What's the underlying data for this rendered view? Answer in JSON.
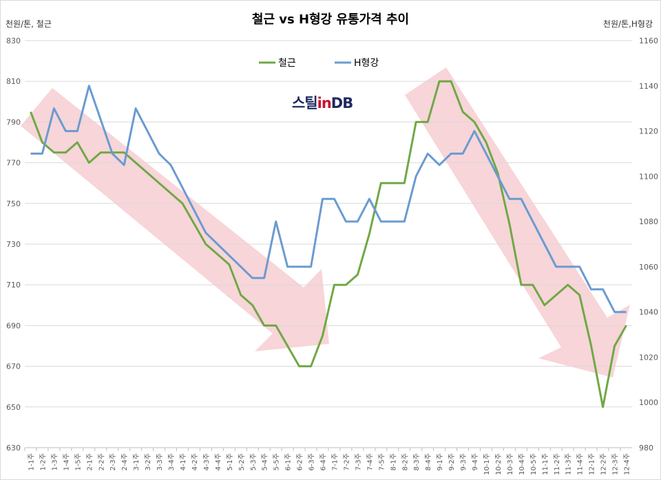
{
  "chart_data": {
    "type": "line",
    "title": "철근 vs H형강 유통가격 추이",
    "ylabel_left": "천원/톤, 철근",
    "ylabel_right": "천원/톤,H형강",
    "ylim_left": [
      630,
      830
    ],
    "ylim_right": [
      980,
      1160
    ],
    "yticks_left": [
      630,
      650,
      670,
      690,
      710,
      730,
      750,
      770,
      790,
      810,
      830
    ],
    "yticks_right": [
      980,
      1000,
      1020,
      1040,
      1060,
      1080,
      1100,
      1120,
      1140,
      1160
    ],
    "grid": true,
    "legend_position": "top-center",
    "categories": [
      "1-1주",
      "1-2주",
      "1-3주",
      "1-4주",
      "1-5주",
      "2-1주",
      "2-2주",
      "2-3주",
      "2-4주",
      "3-1주",
      "3-2주",
      "3-3주",
      "3-4주",
      "4-1주",
      "4-2주",
      "4-3주",
      "4-4주",
      "5-1주",
      "5-2주",
      "5-3주",
      "5-4주",
      "5-5주",
      "6-1주",
      "6-2주",
      "6-3주",
      "6-4주",
      "7-1주",
      "7-2주",
      "7-3주",
      "7-4주",
      "7-5주",
      "8-1주",
      "8-2주",
      "8-3주",
      "8-4주",
      "9-1주",
      "9-2주",
      "9-3주",
      "9-4주",
      "10-1주",
      "10-2주",
      "10-3주",
      "10-4주",
      "10-5주",
      "11-1주",
      "11-2주",
      "11-3주",
      "11-4주",
      "12-1주",
      "12-2주",
      "12-3주",
      "12-4주"
    ],
    "series": [
      {
        "name": "철근",
        "axis": "left",
        "color": "#70a845",
        "values": [
          795,
          780,
          775,
          775,
          780,
          770,
          775,
          775,
          775,
          770,
          765,
          760,
          755,
          750,
          740,
          730,
          725,
          720,
          705,
          700,
          690,
          690,
          680,
          670,
          670,
          685,
          710,
          710,
          715,
          735,
          760,
          760,
          760,
          790,
          790,
          810,
          810,
          795,
          790,
          780,
          765,
          740,
          710,
          710,
          700,
          705,
          710,
          705,
          680,
          650,
          680,
          690
        ]
      },
      {
        "name": "H형강",
        "axis": "right",
        "color": "#6a9bd0",
        "values": [
          1110,
          1110,
          1130,
          1120,
          1120,
          1140,
          1125,
          1110,
          1105,
          1130,
          1120,
          1110,
          1105,
          1095,
          1085,
          1075,
          1070,
          1065,
          1060,
          1055,
          1055,
          1080,
          1060,
          1060,
          1060,
          1090,
          1090,
          1080,
          1080,
          1090,
          1080,
          1080,
          1080,
          1100,
          1110,
          1105,
          1110,
          1110,
          1120,
          1110,
          1100,
          1090,
          1090,
          1080,
          1070,
          1060,
          1060,
          1060,
          1050,
          1050,
          1040,
          1040
        ]
      }
    ]
  },
  "legend": {
    "s1": "철근",
    "s2": "H형강"
  },
  "logo": {
    "part1": "스틸",
    "part2": "in",
    "part3": "DB"
  },
  "colors": {
    "arrow": "#f4c7cc",
    "grid": "#d9d9d9",
    "rebar": "#70a845",
    "hbeam": "#6a9bd0"
  }
}
